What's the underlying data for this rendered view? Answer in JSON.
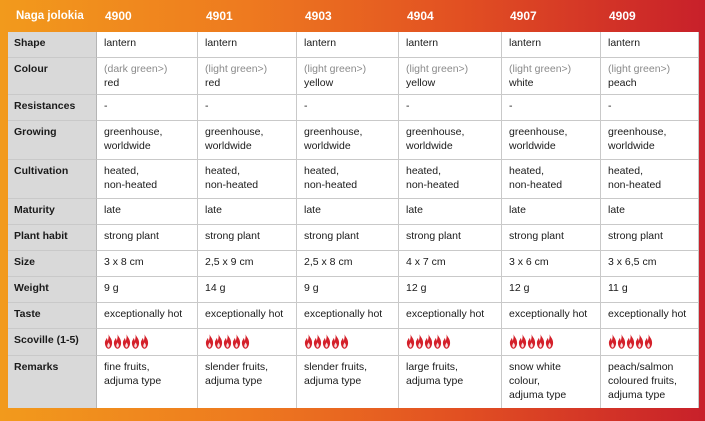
{
  "header": {
    "title": "Naga jolokia",
    "varieties": [
      "4900",
      "4901",
      "4903",
      "4904",
      "4907",
      "4909"
    ]
  },
  "colors": {
    "gradient_left": "#f29a1c",
    "gradient_right": "#c8202a",
    "label_bg": "#d9d9d9",
    "flame_color": "#d4202a"
  },
  "rows": {
    "shape": {
      "label": "Shape",
      "values": [
        "lantern",
        "lantern",
        "lantern",
        "lantern",
        "lantern",
        "lantern"
      ]
    },
    "colour": {
      "label": "Colour",
      "from": [
        "(dark green>)",
        "(light green>)",
        "(light green>)",
        "(light green>)",
        "(light green>)",
        "(light green>)"
      ],
      "to": [
        "red",
        "red",
        "yellow",
        "yellow",
        "white",
        "peach"
      ]
    },
    "resistances": {
      "label": "Resistances",
      "values": [
        "-",
        "-",
        "-",
        "-",
        "-",
        "-"
      ]
    },
    "growing": {
      "label": "Growing",
      "line1": [
        "greenhouse,",
        "greenhouse,",
        "greenhouse,",
        "greenhouse,",
        "greenhouse,",
        "greenhouse,"
      ],
      "line2": [
        "worldwide",
        "worldwide",
        "worldwide",
        "worldwide",
        "worldwide",
        "worldwide"
      ]
    },
    "cultivation": {
      "label": "Cultivation",
      "line1": [
        "heated,",
        "heated,",
        "heated,",
        "heated,",
        "heated,",
        "heated,"
      ],
      "line2": [
        "non-heated",
        "non-heated",
        "non-heated",
        "non-heated",
        "non-heated",
        "non-heated"
      ]
    },
    "maturity": {
      "label": "Maturity",
      "values": [
        "late",
        "late",
        "late",
        "late",
        "late",
        "late"
      ]
    },
    "plant_habit": {
      "label": "Plant habit",
      "values": [
        "strong plant",
        "strong plant",
        "strong plant",
        "strong plant",
        "strong plant",
        "strong plant"
      ]
    },
    "size": {
      "label": "Size",
      "values": [
        "3 x 8 cm",
        "2,5 x 9 cm",
        "2,5 x 8 cm",
        "4 x 7 cm",
        "3 x 6 cm",
        "3 x 6,5 cm"
      ]
    },
    "weight": {
      "label": "Weight",
      "values": [
        "9 g",
        "14 g",
        "9 g",
        "12 g",
        "12 g",
        "11 g"
      ]
    },
    "taste": {
      "label": "Taste",
      "values": [
        "exceptionally hot",
        "exceptionally hot",
        "exceptionally hot",
        "exceptionally hot",
        "exceptionally hot",
        "exceptionally hot"
      ]
    },
    "scoville": {
      "label": "Scoville (1-5)",
      "values": [
        5,
        5,
        5,
        5,
        5,
        5
      ],
      "icon": "flame-icon"
    },
    "remarks": {
      "label": "Remarks",
      "lines": [
        [
          "fine fruits,",
          "adjuma type"
        ],
        [
          "slender fruits,",
          "adjuma type"
        ],
        [
          "slender fruits,",
          "adjuma type"
        ],
        [
          "large fruits,",
          "adjuma type"
        ],
        [
          "snow white",
          "colour,",
          "adjuma type"
        ],
        [
          "peach/salmon",
          "coloured fruits,",
          "adjuma type"
        ]
      ]
    }
  }
}
